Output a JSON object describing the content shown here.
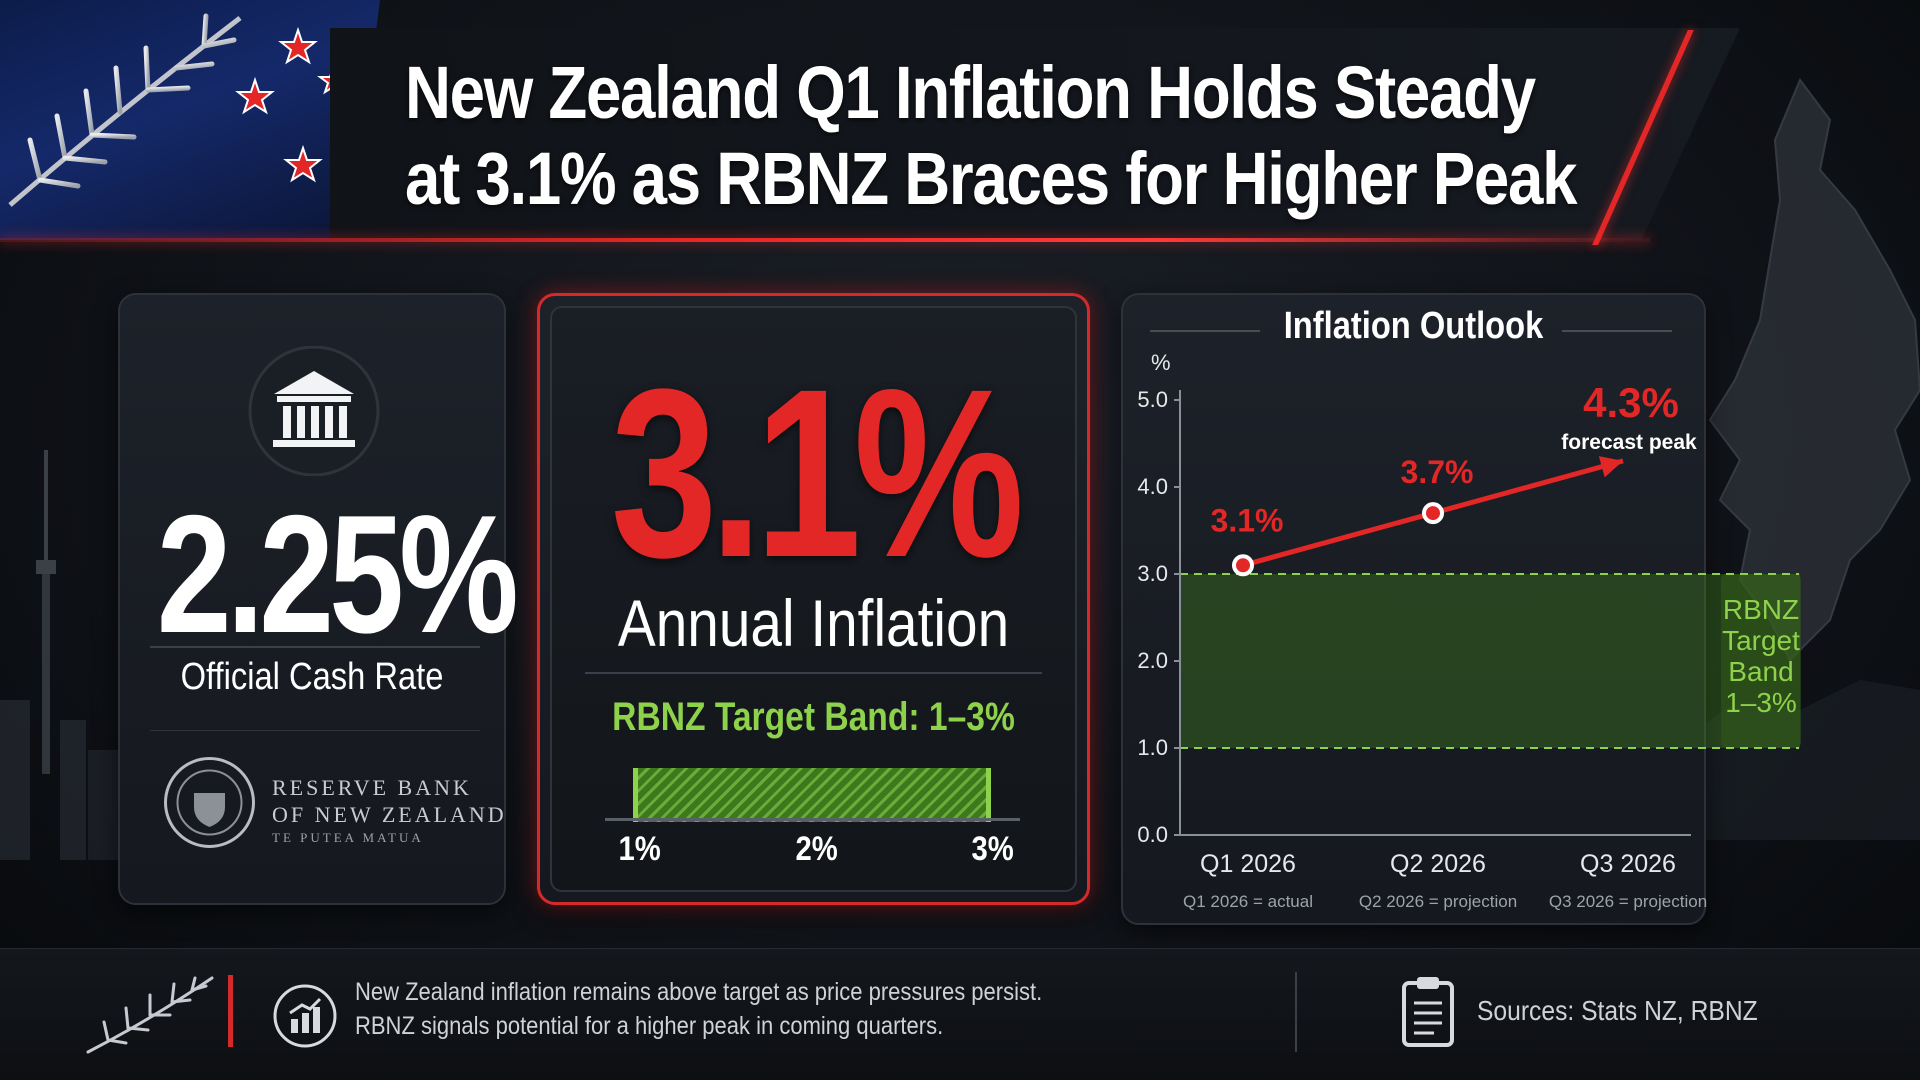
{
  "header": {
    "title_line1": "New Zealand Q1 Inflation Holds Steady",
    "title_line2": "at 3.1% as RBNZ Braces for Higher Peak"
  },
  "ocr_card": {
    "value": "2.25%",
    "label": "Official Cash Rate",
    "bank_name_line1": "RESERVE BANK",
    "bank_name_line2": "OF NEW ZEALAND",
    "bank_name_line3": "TE PUTEA MATUA"
  },
  "inflation_card": {
    "value": "3.1%",
    "label": "Annual Inflation",
    "band_label": "RBNZ Target Band: 1–3%",
    "band_ticks": [
      "1%",
      "2%",
      "3%"
    ]
  },
  "chart_data": {
    "type": "line",
    "title": "Inflation Outlook",
    "y_unit_label": "%",
    "ylim": [
      0.0,
      5.0
    ],
    "yticks": [
      "0.0",
      "1.0",
      "2.0",
      "3.0",
      "4.0",
      "5.0"
    ],
    "categories": [
      "Q1 2026",
      "Q2 2026",
      "Q3 2026"
    ],
    "category_notes": [
      "Q1 2026 = actual",
      "Q2 2026 = projection",
      "Q3 2026 = projection"
    ],
    "series": [
      {
        "values": [
          3.1,
          3.7,
          4.3
        ],
        "data_labels": [
          "3.1%",
          "3.7%",
          "4.3%"
        ]
      }
    ],
    "peak_annotation": "forecast peak",
    "target_band": {
      "low": 1.0,
      "high": 3.0,
      "label_lines": [
        "RBNZ",
        "Target",
        "Band",
        "1–3%"
      ]
    },
    "colors": {
      "line": "#e32626",
      "band": "#8ed14a"
    }
  },
  "footer": {
    "text_line1": "New Zealand inflation remains above target as price pressures persist.",
    "text_line2": "RBNZ signals potential for a higher peak in coming quarters.",
    "sources": "Sources: Stats NZ, RBNZ"
  },
  "icons": [
    "silver-fern-icon",
    "southern-cross-stars-icon",
    "bank-building-icon",
    "rbnz-seal-icon",
    "bar-chart-icon",
    "clipboard-icon"
  ],
  "colors": {
    "accent_red": "#e32626",
    "accent_green": "#8ed14a",
    "background": "#0f1217"
  }
}
